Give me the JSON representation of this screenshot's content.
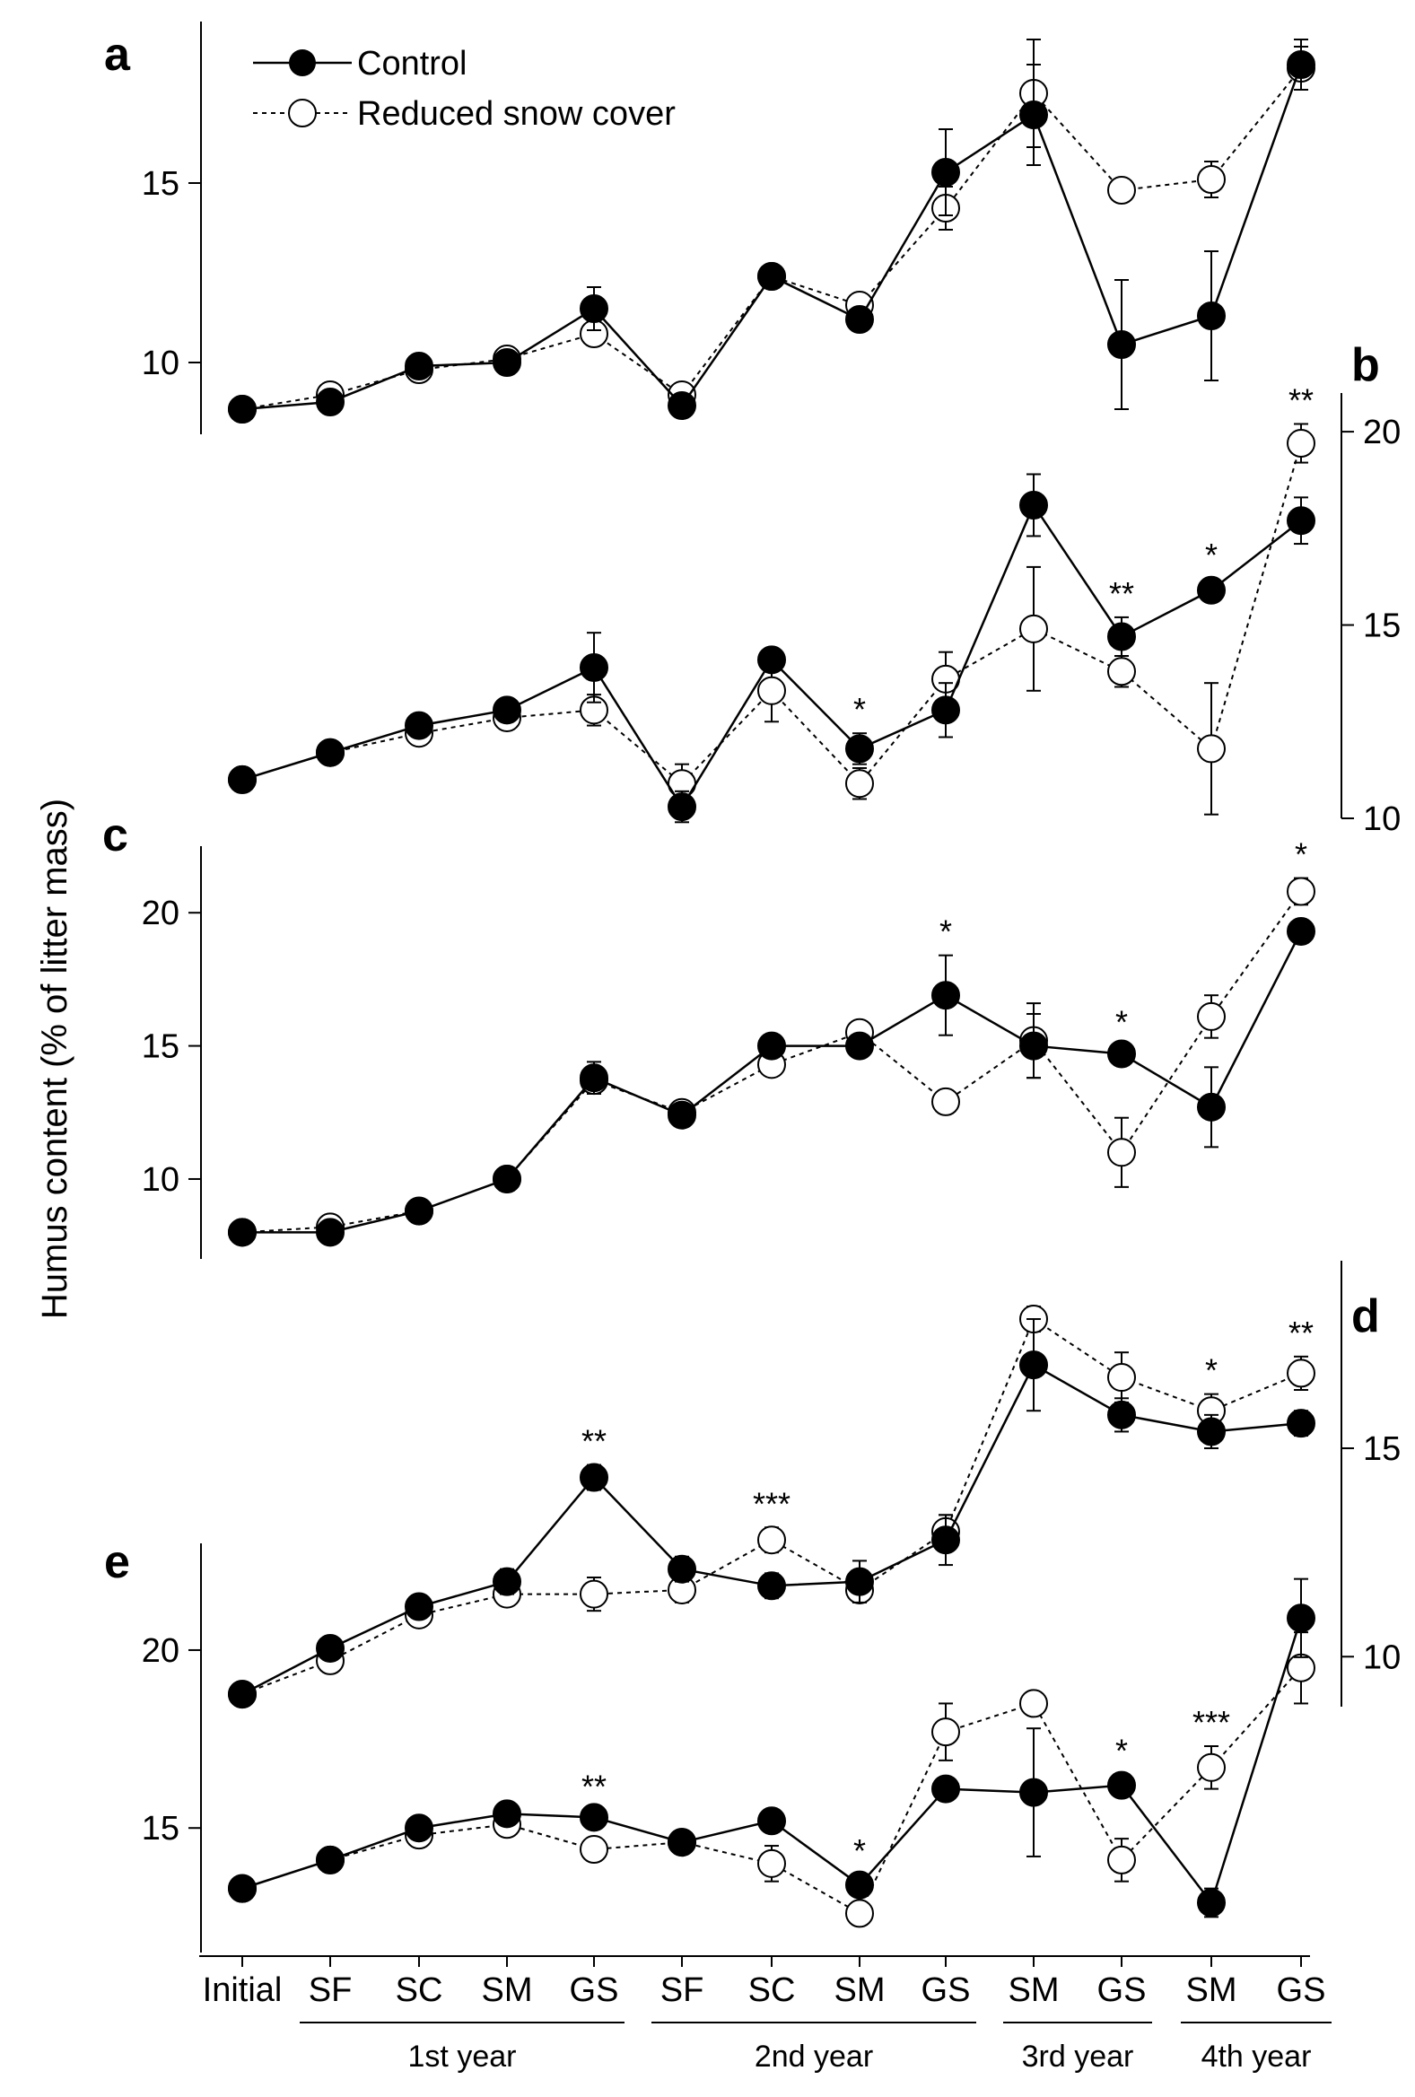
{
  "chart_data": {
    "type": "line",
    "ylabel": "Humus content (% of litter mass)",
    "x_categories": [
      "Initial",
      "SF",
      "SC",
      "SM",
      "GS",
      "SF",
      "SC",
      "SM",
      "GS",
      "SM",
      "GS",
      "SM",
      "GS"
    ],
    "groups": [
      {
        "label": "1st year",
        "from": 1,
        "to": 4
      },
      {
        "label": "2nd year",
        "from": 5,
        "to": 8
      },
      {
        "label": "3rd year",
        "from": 9,
        "to": 10
      },
      {
        "label": "4th year",
        "from": 11,
        "to": 12
      }
    ],
    "legend": {
      "position": "top-left",
      "entries": [
        "Control",
        "Reduced snow cover"
      ]
    },
    "series_names": [
      "Control",
      "Reduced snow cover"
    ],
    "panels": [
      {
        "label": "a",
        "axis": "left",
        "ylim": [
          8,
          19.5
        ],
        "ticks": [
          10,
          15
        ],
        "control": [
          8.7,
          8.9,
          9.9,
          10.0,
          11.5,
          8.8,
          12.4,
          11.2,
          15.3,
          16.9,
          10.5,
          11.3,
          18.3
        ],
        "control_err": [
          0.2,
          0.2,
          0.2,
          0.2,
          0.6,
          0.3,
          0.3,
          0.3,
          1.2,
          1.4,
          1.8,
          1.8,
          0.7
        ],
        "reduced": [
          8.7,
          9.1,
          9.8,
          10.1,
          10.8,
          9.1,
          12.4,
          11.6,
          14.3,
          17.5,
          14.8,
          15.1,
          18.2
        ],
        "reduced_err": [
          0.2,
          0.2,
          0.2,
          0.2,
          0.3,
          0.2,
          0.2,
          0.2,
          0.6,
          1.5,
          0.3,
          0.5,
          0.6
        ],
        "significance": [
          "",
          "",
          "",
          "",
          "",
          "",
          "",
          "",
          "",
          "",
          "",
          "",
          ""
        ]
      },
      {
        "label": "b",
        "axis": "right",
        "ylim": [
          10,
          21
        ],
        "ticks": [
          10,
          15,
          20
        ],
        "control": [
          11.0,
          11.7,
          12.4,
          12.8,
          13.9,
          10.3,
          14.1,
          11.8,
          12.8,
          18.1,
          14.7,
          15.9,
          17.7
        ],
        "control_err": [
          0.2,
          0.2,
          0.2,
          0.3,
          0.9,
          0.4,
          0.3,
          0.4,
          0.7,
          0.8,
          0.5,
          0.3,
          0.6
        ],
        "reduced": [
          11.0,
          11.7,
          12.2,
          12.6,
          12.8,
          10.9,
          13.3,
          10.9,
          13.6,
          14.9,
          13.8,
          11.8,
          19.7
        ],
        "reduced_err": [
          0.2,
          0.2,
          0.2,
          0.2,
          0.4,
          0.5,
          0.8,
          0.4,
          0.7,
          1.6,
          0.4,
          1.7,
          0.5
        ],
        "significance": [
          "",
          "",
          "",
          "",
          "",
          "",
          "",
          "*",
          "",
          "",
          "**",
          "*",
          "**"
        ]
      },
      {
        "label": "c",
        "axis": "left",
        "ylim": [
          7,
          22.5
        ],
        "ticks": [
          10,
          15,
          20
        ],
        "control": [
          8.0,
          8.0,
          8.8,
          10.0,
          13.8,
          12.4,
          15.0,
          15.0,
          16.9,
          15.0,
          14.7,
          12.7,
          19.3
        ],
        "control_err": [
          0.2,
          0.2,
          0.2,
          0.2,
          0.6,
          0.3,
          0.3,
          0.3,
          1.5,
          1.2,
          0.3,
          1.5,
          0.3
        ],
        "reduced": [
          8.0,
          8.2,
          8.8,
          10.0,
          13.7,
          12.5,
          14.3,
          15.5,
          12.9,
          15.2,
          11.0,
          16.1,
          20.8
        ],
        "reduced_err": [
          0.2,
          0.2,
          0.2,
          0.2,
          0.5,
          0.3,
          0.3,
          0.3,
          0.3,
          1.4,
          1.3,
          0.8,
          0.5
        ],
        "significance": [
          "",
          "",
          "",
          "",
          "",
          "",
          "",
          "",
          "*",
          "",
          "*",
          "",
          "*"
        ]
      },
      {
        "label": "d",
        "axis": "right",
        "ylim": [
          8.8,
          19.5
        ],
        "ticks": [
          10,
          15
        ],
        "control": [
          9.1,
          10.2,
          11.2,
          11.8,
          14.3,
          12.1,
          11.7,
          11.8,
          12.8,
          17.0,
          15.8,
          15.4,
          15.6
        ],
        "control_err": [
          0.2,
          0.2,
          0.2,
          0.3,
          0.3,
          0.3,
          0.3,
          0.5,
          0.6,
          1.1,
          0.4,
          0.4,
          0.3
        ],
        "reduced": [
          9.1,
          9.9,
          11.0,
          11.5,
          11.5,
          11.6,
          12.8,
          11.6,
          13.0,
          18.1,
          16.7,
          15.9,
          16.8
        ],
        "reduced_err": [
          0.2,
          0.2,
          0.2,
          0.2,
          0.4,
          0.3,
          0.3,
          0.3,
          0.4,
          0.3,
          0.6,
          0.4,
          0.4
        ],
        "significance": [
          "",
          "",
          "",
          "",
          "**",
          "",
          "***",
          "",
          "",
          "",
          "",
          "*",
          "**"
        ]
      },
      {
        "label": "e",
        "axis": "left",
        "ylim": [
          11.5,
          23
        ],
        "ticks": [
          15,
          20
        ],
        "control": [
          13.3,
          14.1,
          15.0,
          15.4,
          15.3,
          14.6,
          15.2,
          13.4,
          16.1,
          16.0,
          16.2,
          12.9,
          20.9
        ],
        "control_err": [
          0.2,
          0.2,
          0.2,
          0.2,
          0.2,
          0.3,
          0.3,
          0.3,
          0.2,
          1.8,
          0.3,
          0.4,
          1.1
        ],
        "reduced": [
          13.3,
          14.1,
          14.8,
          15.1,
          14.4,
          14.6,
          14.0,
          12.6,
          17.7,
          18.5,
          14.1,
          16.7,
          19.5
        ],
        "reduced_err": [
          0.2,
          0.2,
          0.2,
          0.2,
          0.3,
          0.3,
          0.5,
          0.3,
          0.8,
          0.3,
          0.6,
          0.6,
          1.0
        ],
        "significance": [
          "",
          "",
          "",
          "",
          "**",
          "",
          "",
          "*",
          "",
          "",
          "*",
          "***",
          ""
        ]
      }
    ]
  }
}
